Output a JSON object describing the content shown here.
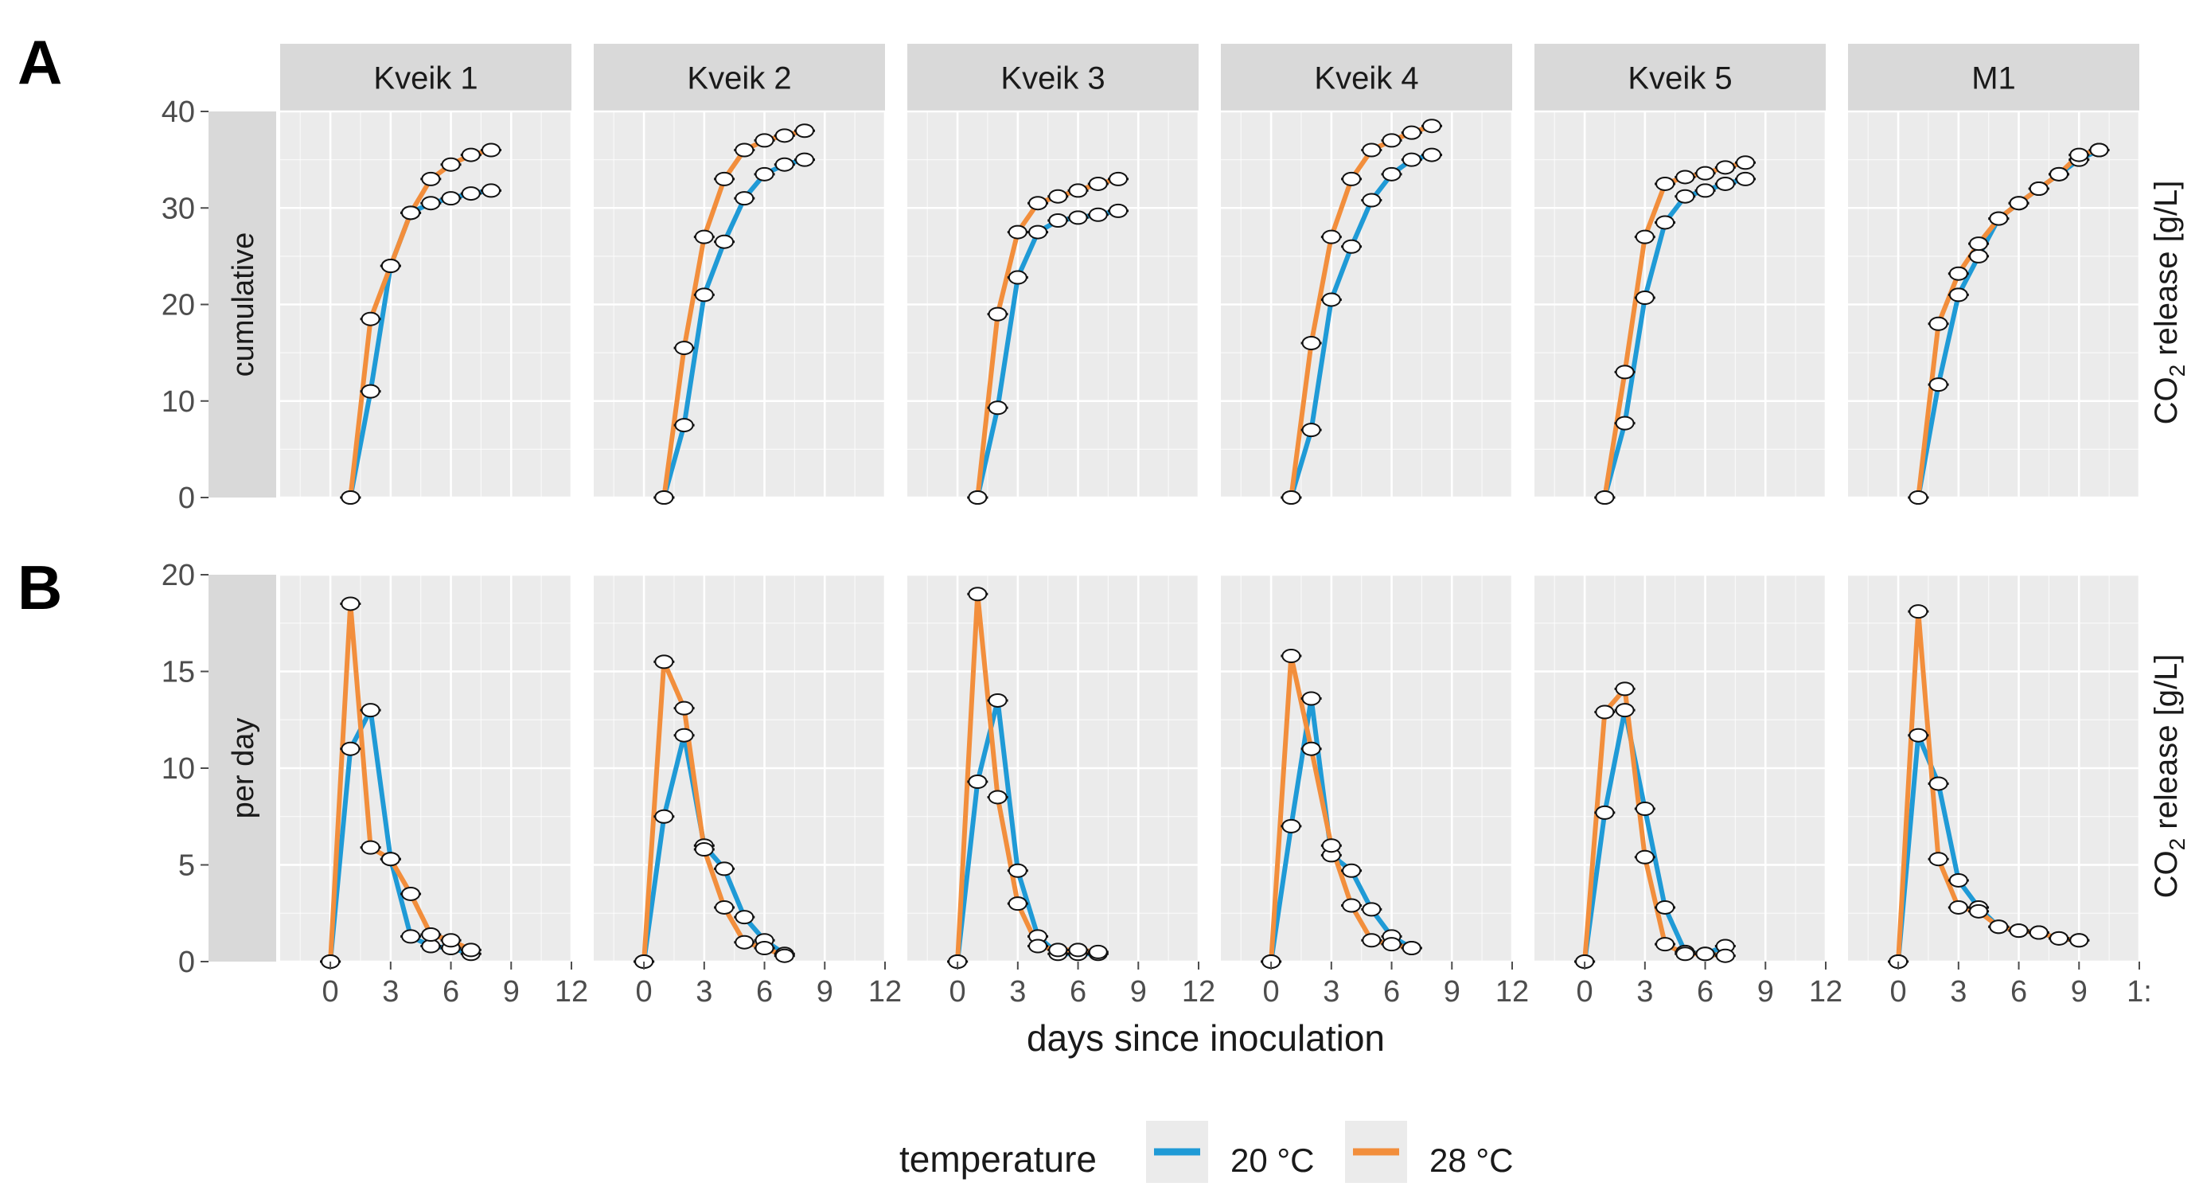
{
  "figure": {
    "panel_labels": [
      "A",
      "B"
    ],
    "xlabel": "days since inoculation",
    "ylabel_right_prefix": "CO",
    "ylabel_right_sub": "2",
    "ylabel_right_suffix": " release [g/L]",
    "colors": {
      "panel_bg": "#ebebeb",
      "grid": "#ffffff",
      "strip_bg": "#d9d9d9",
      "axis_text": "#4d4d4d",
      "title_text": "#1a1a1a"
    }
  },
  "legend": {
    "title": "temperature",
    "items": [
      {
        "label": "20 °C",
        "color": "#1f9ad6"
      },
      {
        "label": "28 °C",
        "color": "#f28e3c"
      }
    ]
  },
  "chart_data": {
    "type": "line",
    "facets": [
      "Kveik 1",
      "Kveik 2",
      "Kveik 3",
      "Kveik 4",
      "Kveik 5",
      "M1"
    ],
    "rows": [
      {
        "label": "cumulative",
        "ylim": [
          0,
          40
        ],
        "yticks": [
          0,
          10,
          20,
          30,
          40
        ]
      },
      {
        "label": "per day",
        "ylim": [
          0,
          20
        ],
        "yticks": [
          0,
          5,
          10,
          15,
          20
        ]
      }
    ],
    "xlim": [
      -2.5,
      12
    ],
    "xticks": [
      0,
      3,
      6,
      9,
      12
    ],
    "x_tick_labels": [
      "0",
      "3",
      "6",
      "9",
      "12"
    ],
    "last_facet_x_tick_labels": [
      "0",
      "3",
      "6",
      "9",
      "1:"
    ],
    "series_names": [
      "20 °C",
      "28 °C"
    ],
    "panels": [
      {
        "facet": "Kveik 1",
        "cumulative": {
          "20 °C": [
            [
              1,
              0
            ],
            [
              2,
              11
            ],
            [
              3,
              24
            ],
            [
              4,
              29.5
            ],
            [
              5,
              30.5
            ],
            [
              6,
              31
            ],
            [
              7,
              31.5
            ],
            [
              8,
              31.8
            ]
          ],
          "28 °C": [
            [
              1,
              0
            ],
            [
              2,
              18.5
            ],
            [
              3,
              24
            ],
            [
              4,
              29.5
            ],
            [
              5,
              33
            ],
            [
              6,
              34.5
            ],
            [
              7,
              35.5
            ],
            [
              8,
              36
            ]
          ]
        },
        "per_day": {
          "20 °C": [
            [
              0,
              0
            ],
            [
              1,
              11
            ],
            [
              2,
              13
            ],
            [
              3,
              5.3
            ],
            [
              4,
              1.3
            ],
            [
              5,
              0.8
            ],
            [
              6,
              0.7
            ],
            [
              7,
              0.4
            ]
          ],
          "28 °C": [
            [
              0,
              0
            ],
            [
              1,
              18.5
            ],
            [
              2,
              5.9
            ],
            [
              3,
              5.3
            ],
            [
              4,
              3.5
            ],
            [
              5,
              1.4
            ],
            [
              6,
              1.1
            ],
            [
              7,
              0.6
            ]
          ]
        }
      },
      {
        "facet": "Kveik 2",
        "cumulative": {
          "20 °C": [
            [
              1,
              0
            ],
            [
              2,
              7.5
            ],
            [
              3,
              21
            ],
            [
              4,
              26.5
            ],
            [
              5,
              31
            ],
            [
              6,
              33.5
            ],
            [
              7,
              34.5
            ],
            [
              8,
              35
            ]
          ],
          "28 °C": [
            [
              1,
              0
            ],
            [
              2,
              15.5
            ],
            [
              3,
              27
            ],
            [
              4,
              33
            ],
            [
              5,
              36
            ],
            [
              6,
              37
            ],
            [
              7,
              37.5
            ],
            [
              8,
              38
            ]
          ]
        },
        "per_day": {
          "20 °C": [
            [
              0,
              0
            ],
            [
              1,
              7.5
            ],
            [
              2,
              11.7
            ],
            [
              3,
              6
            ],
            [
              4,
              4.8
            ],
            [
              5,
              2.3
            ],
            [
              6,
              1.1
            ],
            [
              7,
              0.4
            ]
          ],
          "28 °C": [
            [
              0,
              0
            ],
            [
              1,
              15.5
            ],
            [
              2,
              13.1
            ],
            [
              3,
              5.8
            ],
            [
              4,
              2.8
            ],
            [
              5,
              1
            ],
            [
              6,
              0.7
            ],
            [
              7,
              0.3
            ]
          ]
        }
      },
      {
        "facet": "Kveik 3",
        "cumulative": {
          "20 °C": [
            [
              1,
              0
            ],
            [
              2,
              9.3
            ],
            [
              3,
              22.8
            ],
            [
              4,
              27.5
            ],
            [
              5,
              28.7
            ],
            [
              6,
              29
            ],
            [
              7,
              29.3
            ],
            [
              8,
              29.7
            ]
          ],
          "28 °C": [
            [
              1,
              0
            ],
            [
              2,
              19
            ],
            [
              3,
              27.5
            ],
            [
              4,
              30.5
            ],
            [
              5,
              31.2
            ],
            [
              6,
              31.8
            ],
            [
              7,
              32.5
            ],
            [
              8,
              33
            ]
          ]
        },
        "per_day": {
          "20 °C": [
            [
              0,
              0
            ],
            [
              1,
              9.3
            ],
            [
              2,
              13.5
            ],
            [
              3,
              4.7
            ],
            [
              4,
              1.3
            ],
            [
              5,
              0.4
            ],
            [
              6,
              0.4
            ],
            [
              7,
              0.4
            ]
          ],
          "28 °C": [
            [
              0,
              0
            ],
            [
              1,
              19
            ],
            [
              2,
              8.5
            ],
            [
              3,
              3
            ],
            [
              4,
              0.8
            ],
            [
              5,
              0.6
            ],
            [
              6,
              0.6
            ],
            [
              7,
              0.5
            ]
          ]
        }
      },
      {
        "facet": "Kveik 4",
        "cumulative": {
          "20 °C": [
            [
              1,
              0
            ],
            [
              2,
              7
            ],
            [
              3,
              20.5
            ],
            [
              4,
              26
            ],
            [
              5,
              30.8
            ],
            [
              6,
              33.5
            ],
            [
              7,
              35
            ],
            [
              8,
              35.5
            ]
          ],
          "28 °C": [
            [
              1,
              0
            ],
            [
              2,
              16
            ],
            [
              3,
              27
            ],
            [
              4,
              33
            ],
            [
              5,
              36
            ],
            [
              6,
              37
            ],
            [
              7,
              37.8
            ],
            [
              8,
              38.5
            ]
          ]
        },
        "per_day": {
          "20 °C": [
            [
              0,
              0
            ],
            [
              1,
              7
            ],
            [
              2,
              13.6
            ],
            [
              3,
              5.5
            ],
            [
              4,
              4.7
            ],
            [
              5,
              2.7
            ],
            [
              6,
              1.3
            ],
            [
              7,
              0.7
            ]
          ],
          "28 °C": [
            [
              0,
              0
            ],
            [
              1,
              15.8
            ],
            [
              2,
              11
            ],
            [
              3,
              6
            ],
            [
              4,
              2.9
            ],
            [
              5,
              1.1
            ],
            [
              6,
              0.9
            ],
            [
              7,
              0.7
            ]
          ]
        }
      },
      {
        "facet": "Kveik 5",
        "cumulative": {
          "20 °C": [
            [
              1,
              0
            ],
            [
              2,
              7.7
            ],
            [
              3,
              20.7
            ],
            [
              4,
              28.5
            ],
            [
              5,
              31.2
            ],
            [
              6,
              31.8
            ],
            [
              7,
              32.5
            ],
            [
              8,
              33
            ]
          ],
          "28 °C": [
            [
              1,
              0
            ],
            [
              2,
              13
            ],
            [
              3,
              27
            ],
            [
              4,
              32.5
            ],
            [
              5,
              33.2
            ],
            [
              6,
              33.6
            ],
            [
              7,
              34.2
            ],
            [
              8,
              34.7
            ]
          ]
        },
        "per_day": {
          "20 °C": [
            [
              0,
              0
            ],
            [
              1,
              7.7
            ],
            [
              2,
              13
            ],
            [
              3,
              7.9
            ],
            [
              4,
              2.8
            ],
            [
              5,
              0.5
            ],
            [
              6,
              0.4
            ],
            [
              7,
              0.8
            ]
          ],
          "28 °C": [
            [
              0,
              0
            ],
            [
              1,
              12.9
            ],
            [
              2,
              14.1
            ],
            [
              3,
              5.4
            ],
            [
              4,
              0.9
            ],
            [
              5,
              0.4
            ],
            [
              6,
              0.4
            ],
            [
              7,
              0.3
            ]
          ]
        }
      },
      {
        "facet": "M1",
        "cumulative": {
          "20 °C": [
            [
              1,
              0
            ],
            [
              2,
              11.7
            ],
            [
              3,
              21
            ],
            [
              4,
              25
            ],
            [
              5,
              28.9
            ],
            [
              6,
              30.5
            ],
            [
              7,
              32
            ],
            [
              8,
              33.5
            ],
            [
              9,
              35
            ],
            [
              10,
              36
            ]
          ],
          "28 °C": [
            [
              1,
              0
            ],
            [
              2,
              18
            ],
            [
              3,
              23.2
            ],
            [
              4,
              26.3
            ],
            [
              5,
              28.9
            ],
            [
              6,
              30.5
            ],
            [
              7,
              32
            ],
            [
              8,
              33.5
            ],
            [
              9,
              35.5
            ],
            [
              10,
              36
            ]
          ]
        },
        "per_day": {
          "20 °C": [
            [
              0,
              0
            ],
            [
              1,
              11.7
            ],
            [
              2,
              9.2
            ],
            [
              3,
              4.2
            ],
            [
              4,
              2.8
            ],
            [
              5,
              1.8
            ],
            [
              6,
              1.6
            ],
            [
              7,
              1.5
            ],
            [
              8,
              1.2
            ],
            [
              9,
              1.1
            ]
          ],
          "28 °C": [
            [
              0,
              0
            ],
            [
              1,
              18.1
            ],
            [
              2,
              5.3
            ],
            [
              3,
              2.8
            ],
            [
              4,
              2.6
            ],
            [
              5,
              1.8
            ],
            [
              6,
              1.6
            ],
            [
              7,
              1.5
            ],
            [
              8,
              1.2
            ],
            [
              9,
              1.1
            ]
          ]
        }
      }
    ]
  }
}
